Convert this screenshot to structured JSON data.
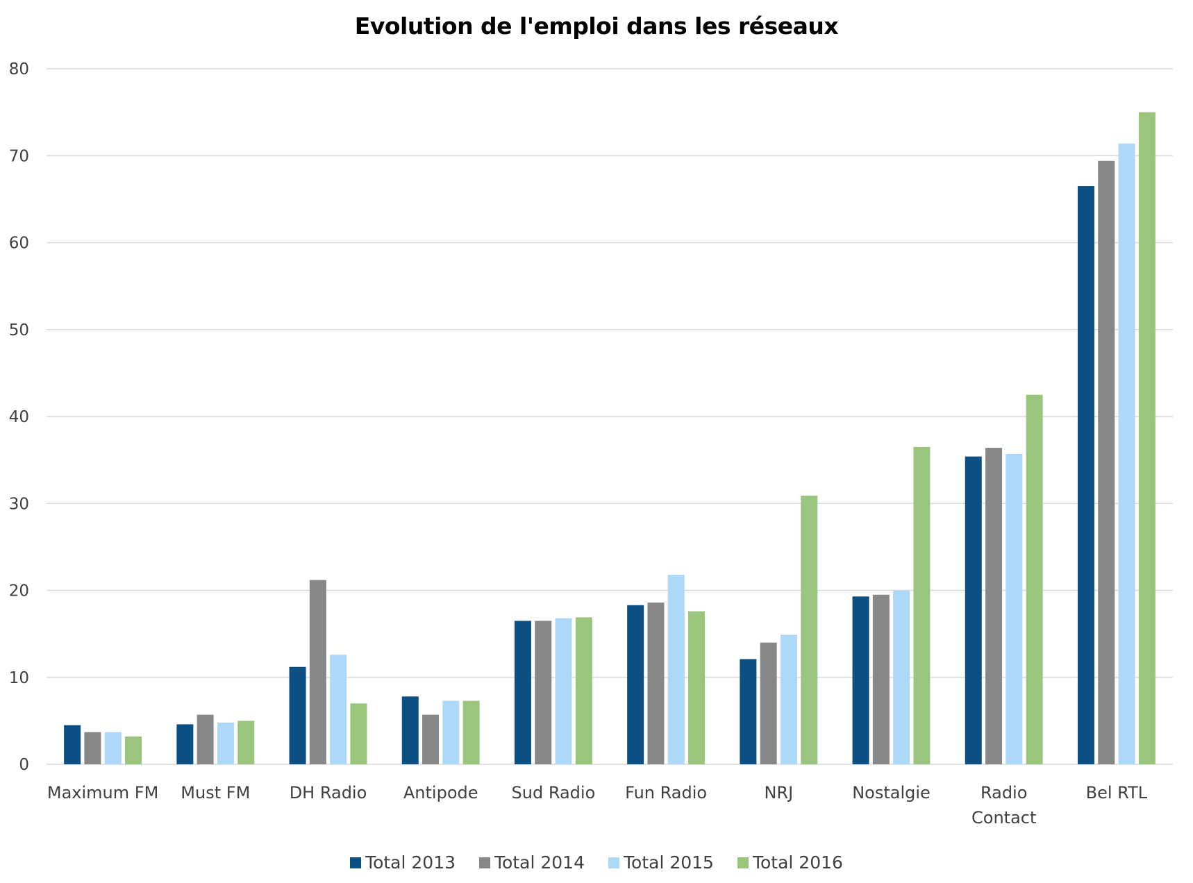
{
  "chart_data": {
    "type": "bar",
    "title": "Evolution de l'emploi dans les réseaux",
    "xlabel": "",
    "ylabel": "",
    "ylim": [
      0,
      80
    ],
    "yticks": [
      0,
      10,
      20,
      30,
      40,
      50,
      60,
      70,
      80
    ],
    "grid": true,
    "legend_position": "bottom",
    "categories": [
      "Maximum FM",
      "Must FM",
      "DH Radio",
      "Antipode",
      "Sud Radio",
      "Fun Radio",
      "NRJ",
      "Nostalgie",
      "Radio Contact",
      "Bel RTL"
    ],
    "category_label_lines": [
      [
        "Maximum FM"
      ],
      [
        "Must FM"
      ],
      [
        "DH Radio"
      ],
      [
        "Antipode"
      ],
      [
        "Sud Radio"
      ],
      [
        "Fun Radio"
      ],
      [
        "NRJ"
      ],
      [
        "Nostalgie"
      ],
      [
        "Radio",
        "Contact"
      ],
      [
        "Bel RTL"
      ]
    ],
    "series": [
      {
        "name": "Total 2013",
        "color": "#0B4F83",
        "values": [
          4.5,
          4.6,
          11.2,
          7.8,
          16.5,
          18.3,
          12.1,
          19.3,
          35.4,
          66.5
        ]
      },
      {
        "name": "Total 2014",
        "color": "#878787",
        "values": [
          3.7,
          5.7,
          21.2,
          5.7,
          16.5,
          18.6,
          14.0,
          19.5,
          36.4,
          69.4
        ]
      },
      {
        "name": "Total 2015",
        "color": "#AED8F8",
        "values": [
          3.7,
          4.8,
          12.6,
          7.3,
          16.8,
          21.8,
          14.9,
          20.0,
          35.7,
          71.4
        ]
      },
      {
        "name": "Total 2016",
        "color": "#9AC57D",
        "values": [
          3.2,
          5.0,
          7.0,
          7.3,
          16.9,
          17.6,
          30.9,
          36.5,
          42.5,
          75.0
        ]
      }
    ]
  }
}
